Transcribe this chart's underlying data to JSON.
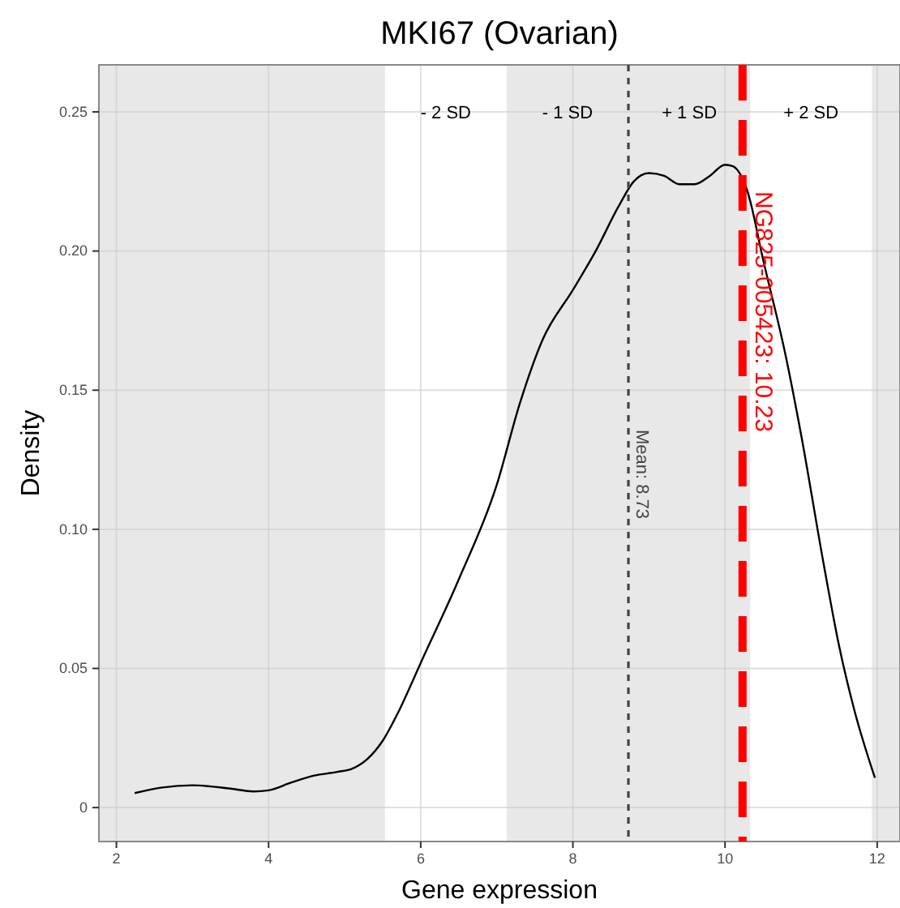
{
  "chart_data": {
    "type": "line",
    "title": "MKI67 (Ovarian)",
    "xlabel": "Gene expression",
    "ylabel": "Density",
    "xlim": [
      1.77,
      12.3
    ],
    "ylim": [
      -0.0122,
      0.2669
    ],
    "xticks": [
      2,
      4,
      6,
      8,
      10,
      12
    ],
    "yticks": [
      0,
      {
        "value": 0.05,
        "label": "0.05"
      },
      {
        "value": 0.1,
        "label": "0.10"
      },
      {
        "value": 0.15,
        "label": "0.15"
      },
      {
        "value": 0.2,
        "label": "0.20"
      },
      {
        "value": 0.25,
        "label": "0.25"
      }
    ],
    "grid": true,
    "series": [
      {
        "color": "#000000",
        "x": [
          2.24,
          2.6,
          3,
          3.5,
          3.8,
          4,
          4.3,
          4.6,
          4.9,
          5.1,
          5.3,
          5.5,
          5.7,
          6,
          6.5,
          7,
          7.3,
          7.6,
          8,
          8.3,
          8.6,
          8.8,
          9,
          9.2,
          9.4,
          9.6,
          9.8,
          10,
          10.1,
          10.3,
          10.5,
          10.8,
          11,
          11.3,
          11.5,
          11.7,
          11.97
        ],
        "values": [
          0.0052,
          0.0072,
          0.008,
          0.0068,
          0.0058,
          0.0062,
          0.009,
          0.0115,
          0.0128,
          0.014,
          0.0175,
          0.024,
          0.034,
          0.052,
          0.082,
          0.116,
          0.145,
          0.168,
          0.186,
          0.2,
          0.216,
          0.225,
          0.228,
          0.227,
          0.224,
          0.224,
          0.227,
          0.231,
          0.2305,
          0.221,
          0.197,
          0.162,
          0.134,
          0.087,
          0.058,
          0.035,
          0.0107
        ]
      }
    ],
    "bands": [
      {
        "axis": "x",
        "from": 1.77,
        "to": 5.53,
        "color": "#e8e8e8"
      },
      {
        "axis": "x",
        "from": 7.13,
        "to": 10.33,
        "color": "#e8e8e8"
      },
      {
        "axis": "x",
        "from": 11.93,
        "to": 12.3,
        "color": "#e8e8e8"
      }
    ],
    "ref_lines": [
      {
        "axis": "x",
        "value": 8.73,
        "label": "Mean: 8.73",
        "color": "#444444",
        "line_style": "dashed"
      },
      {
        "axis": "x",
        "value": 10.23,
        "label": "NG825-005423: 10.23",
        "color": "#ff0000",
        "line_style": "dashed"
      }
    ],
    "annotations": [
      "- 2 SD",
      "- 1 SD",
      "+ 1 SD",
      "+ 2 SD"
    ]
  }
}
